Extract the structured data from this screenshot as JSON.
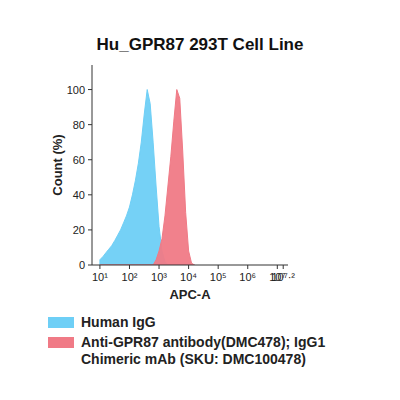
{
  "chart_data": {
    "type": "area",
    "title": "Hu_GPR87 293T Cell Line",
    "x_label": "APC-A",
    "y_label": "Count (%)",
    "log": "x",
    "grid": false,
    "legend": "bottom",
    "x": [
      10,
      13,
      16,
      20,
      25,
      32,
      40,
      50,
      63,
      79,
      100,
      126,
      158,
      200,
      251,
      316,
      398,
      501,
      631,
      794,
      1000,
      1259,
      1585,
      1995,
      2512,
      3162,
      3981,
      5012,
      6310,
      7943,
      10000,
      12589,
      15849
    ],
    "series": [
      {
        "name": "Human IgG",
        "color": "#6ecff6",
        "values": [
          3,
          5,
          7,
          9,
          11,
          14,
          17,
          20,
          24,
          28,
          33,
          40,
          48,
          58,
          70,
          86,
          100,
          92,
          70,
          45,
          22,
          8,
          2,
          0,
          0,
          0,
          0,
          0,
          0,
          0,
          0,
          0,
          0
        ]
      },
      {
        "name": "Anti-GPR87 antibody(DMC478); IgG1 Chimeric mAb (SKU: DMC100478)",
        "color": "#f07a86",
        "values": [
          0,
          0,
          0,
          0,
          0,
          0,
          0,
          0,
          0,
          0,
          0,
          0,
          0,
          0,
          0,
          0,
          0,
          0,
          0,
          3,
          8,
          15,
          28,
          45,
          62,
          82,
          100,
          95,
          65,
          30,
          8,
          1,
          0
        ]
      }
    ],
    "xlim": [
      5.4,
      23000000
    ],
    "xticks": [
      {
        "value": 10,
        "label": "10¹"
      },
      {
        "value": 100,
        "label": "10²"
      },
      {
        "value": 1000,
        "label": "10³"
      },
      {
        "value": 10000,
        "label": "10⁴"
      },
      {
        "value": 100000,
        "label": "10⁵"
      },
      {
        "value": 1000000,
        "label": "10⁶"
      },
      {
        "value": 10000000,
        "label": "10⁷"
      },
      {
        "value": 15848932,
        "label": "10⁷·²"
      }
    ],
    "ylim": [
      0,
      114
    ],
    "yticks": [
      0,
      20,
      40,
      60,
      80,
      100
    ]
  }
}
